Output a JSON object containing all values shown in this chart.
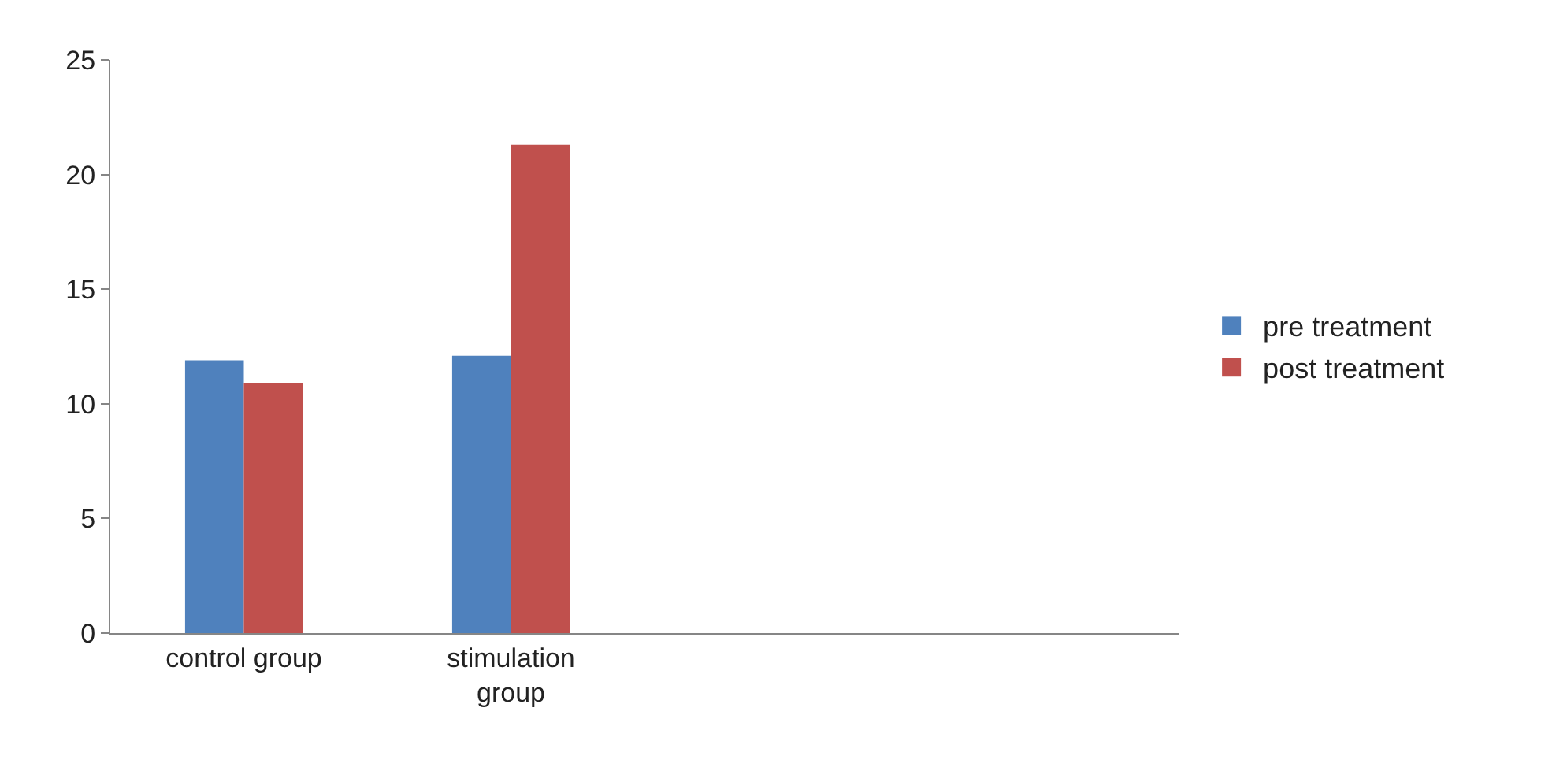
{
  "chart_data": {
    "type": "bar",
    "categories": [
      "control group",
      "stimulation group",
      null,
      null
    ],
    "series": [
      {
        "name": "pre treatment",
        "color": "#4f81bd",
        "values": [
          11.9,
          12.1,
          null,
          null
        ]
      },
      {
        "name": "post treatment",
        "color": "#c0504d",
        "values": [
          10.9,
          21.3,
          null,
          null
        ]
      }
    ],
    "ylim": [
      0,
      25
    ],
    "yticks": [
      0,
      5,
      10,
      15,
      20,
      25
    ],
    "legend": "right"
  }
}
